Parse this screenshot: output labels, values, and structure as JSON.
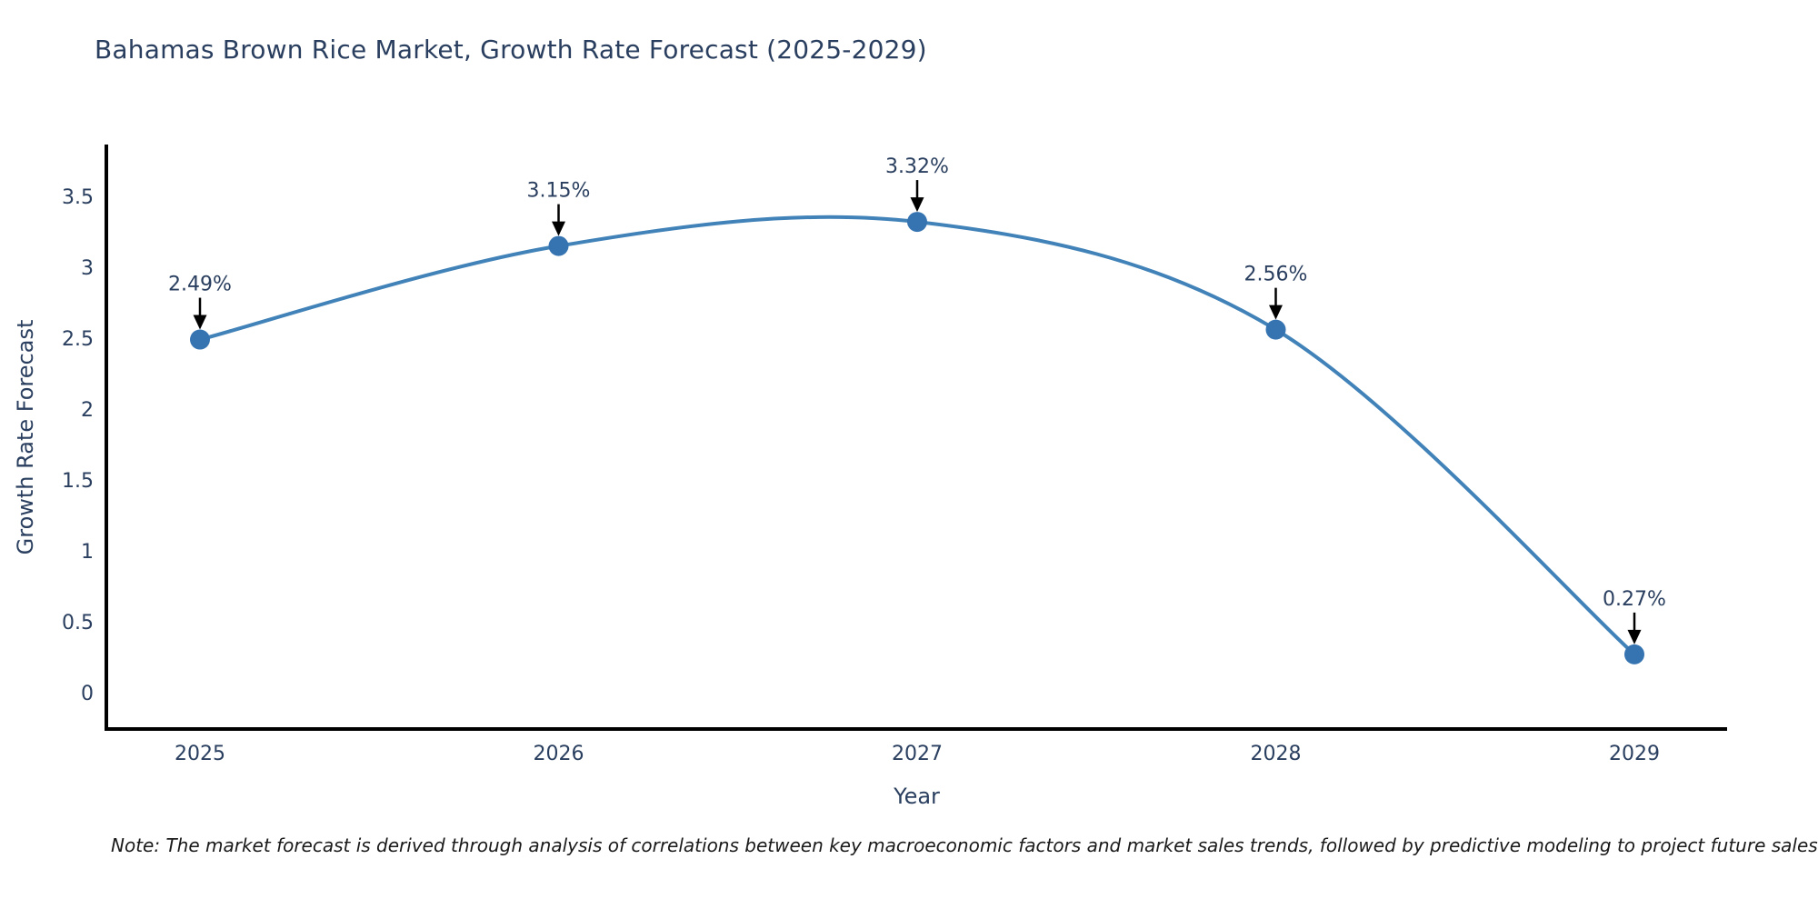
{
  "note": "Note: The market forecast is derived through analysis of correlations between key macroeconomic factors and market sales trends, followed by predictive modeling to project future sales",
  "chart_data": {
    "type": "line",
    "title": "Bahamas Brown Rice Market, Growth Rate Forecast (2025-2029)",
    "xlabel": "Year",
    "ylabel": "Growth Rate Forecast",
    "x": [
      2025,
      2026,
      2027,
      2028,
      2029
    ],
    "series": [
      {
        "name": "Growth Rate Forecast",
        "values": [
          2.49,
          3.15,
          3.32,
          2.56,
          0.27
        ]
      }
    ],
    "point_labels": [
      "2.49%",
      "3.15%",
      "3.32%",
      "2.56%",
      "0.27%"
    ],
    "ylim": [
      0,
      3.5
    ],
    "yticks": [
      0,
      0.5,
      1,
      1.5,
      2,
      2.5,
      3,
      3.5
    ],
    "line_shape": "spline",
    "grid": false,
    "legend": "none",
    "colors": {
      "line": "#4182b8",
      "marker": "#3573b1",
      "axis": "#000000",
      "text": "#2a3f5f",
      "annotation_text": "#2a3f5f",
      "annotation_arrow": "#000000",
      "background": "#ffffff"
    }
  }
}
